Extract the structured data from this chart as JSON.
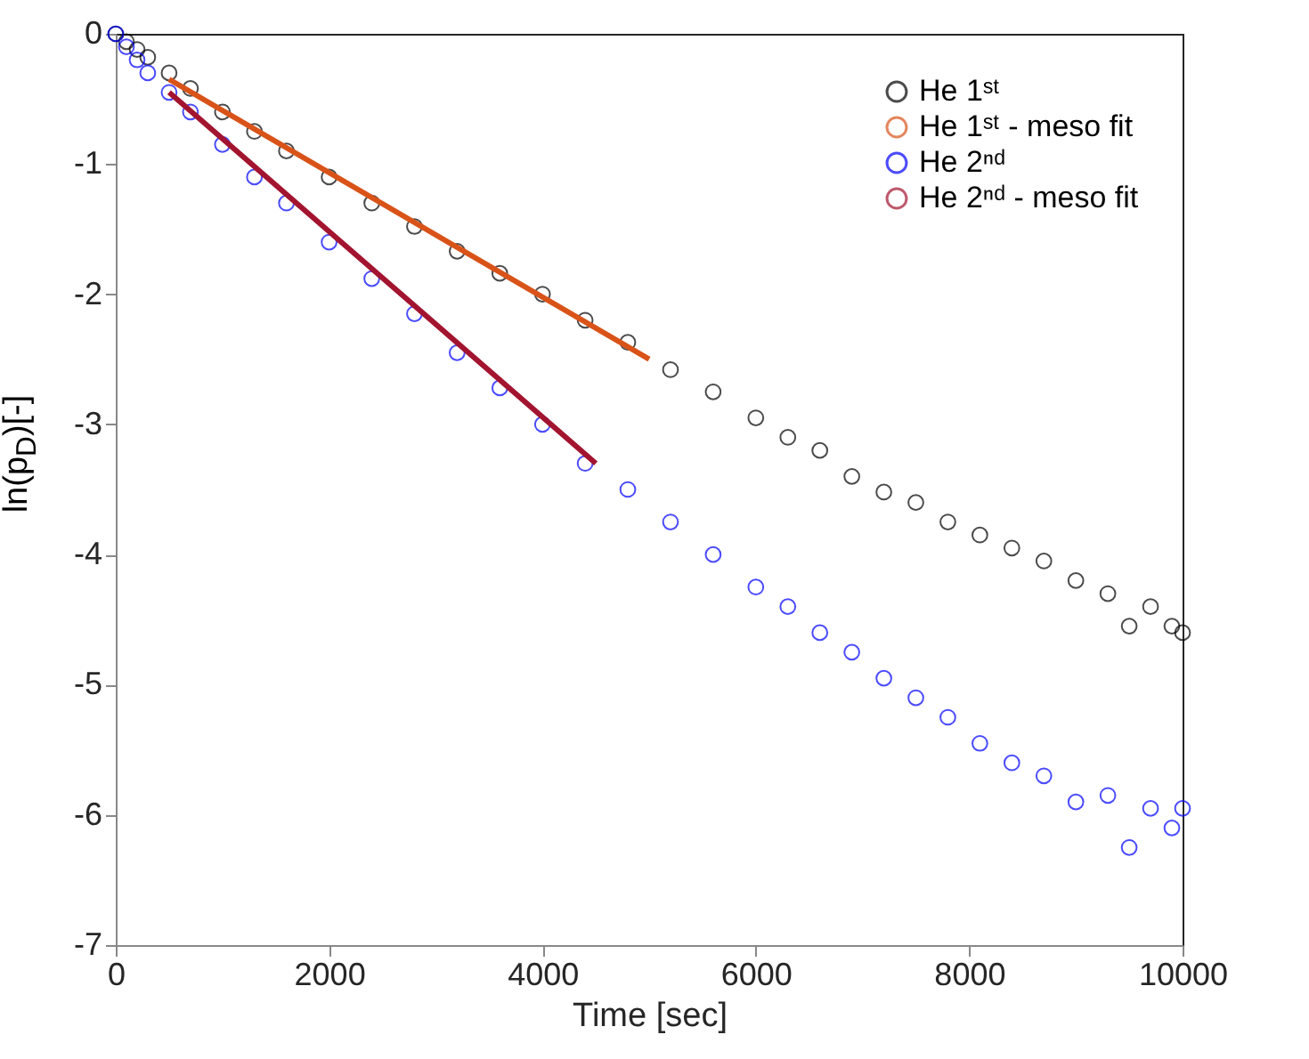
{
  "chart_data": {
    "type": "scatter",
    "xlabel": "Time [sec]",
    "ylabel": "ln(p$_{D}$)[-]",
    "xlim": [
      0,
      10000
    ],
    "xticks": [
      0,
      2000,
      4000,
      6000,
      8000,
      10000
    ],
    "ylim": [
      -7,
      0
    ],
    "yticks": [
      -7,
      -6,
      -5,
      -4,
      -3,
      -2,
      -1,
      0
    ],
    "grid": false,
    "legend": "top right",
    "line_style": "solid",
    "x": [
      0,
      100,
      200,
      300,
      500,
      700,
      1000,
      1300,
      1600,
      2000,
      2400,
      2800,
      3200,
      3600,
      4000,
      4400,
      4800,
      5200,
      5600,
      6000,
      6300,
      6600,
      6900,
      7200,
      7500,
      7800,
      8100,
      8400,
      8700,
      9000,
      9300,
      9500,
      9700,
      9900,
      10000
    ],
    "series": [
      {
        "name": "He 1ˢᵗ",
        "marker": "circle",
        "color": "#000000",
        "values": [
          0,
          -0.06,
          -0.12,
          -0.18,
          -0.3,
          -0.42,
          -0.6,
          -0.75,
          -0.9,
          -1.1,
          -1.3,
          -1.48,
          -1.67,
          -1.84,
          -2.0,
          -2.2,
          -2.37,
          -2.58,
          -2.75,
          -2.95,
          -3.1,
          -3.2,
          -3.4,
          -3.52,
          -3.6,
          -3.75,
          -3.85,
          -3.95,
          -4.05,
          -4.2,
          -4.3,
          -4.55,
          -4.4,
          -4.55,
          -4.6
        ]
      },
      {
        "name": "He 1ˢᵗ - meso fit",
        "type": "line",
        "color": "#d95319",
        "x": [
          500,
          5000
        ],
        "values": [
          -0.35,
          -2.5
        ]
      },
      {
        "name": "He 2ⁿᵈ",
        "marker": "circle",
        "color": "#0000ff",
        "values": [
          0,
          -0.1,
          -0.2,
          -0.3,
          -0.45,
          -0.6,
          -0.85,
          -1.1,
          -1.3,
          -1.6,
          -1.88,
          -2.15,
          -2.45,
          -2.72,
          -3.0,
          -3.3,
          -3.5,
          -3.75,
          -4.0,
          -4.25,
          -4.4,
          -4.6,
          -4.75,
          -4.95,
          -5.1,
          -5.25,
          -5.45,
          -5.6,
          -5.7,
          -5.9,
          -5.85,
          -6.25,
          -5.95,
          -6.1,
          -5.95
        ]
      },
      {
        "name": "He 2ⁿᵈ - meso fit",
        "type": "line",
        "color": "#a2142f",
        "x": [
          500,
          4500
        ],
        "values": [
          -0.45,
          -3.3
        ]
      }
    ]
  }
}
